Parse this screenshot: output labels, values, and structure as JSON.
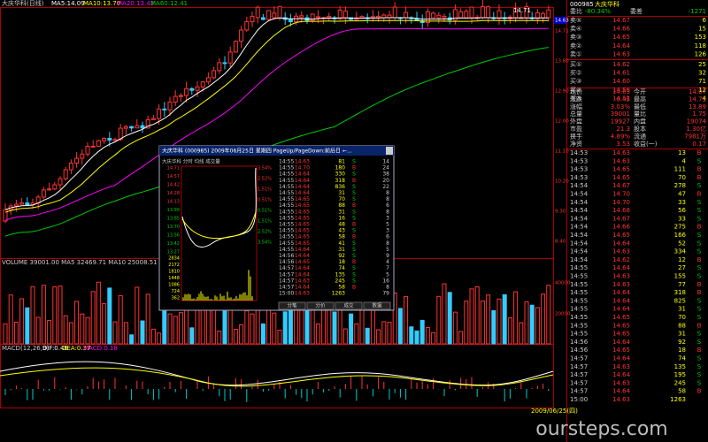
{
  "main": {
    "title": "大庆华科(日线)",
    "ma5": "MA5:14.09",
    "ma10": "MA10:13.70",
    "ma20": "MA20:13.42",
    "ma60": "MA60:12.41",
    "high_label": "14.71",
    "price_tag": "14.63",
    "axis": [
      "14.71",
      "13.80",
      "12.90",
      "12.00",
      "11.10",
      "10.20",
      "9.30",
      "8.40"
    ],
    "volume_label": "VOLUME 39001.00  MA5 32469.71  MA10 25008.51",
    "vol_axis": [
      "40000",
      "20000"
    ],
    "macd_label": "MACD(12,26,9)",
    "dif": "DIF:0.46",
    "dea": "DEA:0.37",
    "macd": "MACD:0.18",
    "date_label": "2009/06/25(四)",
    "watermark": "oursteps.com"
  },
  "popup": {
    "title": "大庆华科 (000985)  2009年06月25日 星期四 PageUp/PageDown:前后日 ←...",
    "chart_title": "大庆华科  分时  均线  成交量",
    "left_axis": [
      "14.71",
      "14.57",
      "14.42",
      "14.28",
      "14.13",
      "13.99",
      "13.85",
      "13.70",
      "13.56",
      "13.42",
      "13.27"
    ],
    "right_axis": [
      "3.54%",
      "2.52%",
      "1.51%",
      "0.51%",
      "0.51%",
      "1.51%",
      "2.52%",
      "3.54%"
    ],
    "vol_axis": [
      "2834",
      "2172",
      "1810",
      "1448",
      "1086",
      "724",
      "362"
    ],
    "trades": [
      [
        "14:55",
        "14.63",
        "81",
        "S",
        "14"
      ],
      [
        "14:55",
        "14.70",
        "180",
        "B",
        "24"
      ],
      [
        "14:55",
        "14.64",
        "330",
        "S",
        "38"
      ],
      [
        "14:55",
        "14.64",
        "318",
        "B",
        "20"
      ],
      [
        "14:55",
        "14.64",
        "836",
        "S",
        "22"
      ],
      [
        "14:55",
        "14.64",
        "31",
        "S",
        "8"
      ],
      [
        "14:55",
        "14.65",
        "70",
        "S",
        "8"
      ],
      [
        "14:55",
        "14.65",
        "88",
        "B",
        "6"
      ],
      [
        "14:55",
        "14.65",
        "31",
        "S",
        "8"
      ],
      [
        "14:55",
        "14.65",
        "16",
        "S",
        "3"
      ],
      [
        "14:55",
        "14.65",
        "48",
        "B",
        "5"
      ],
      [
        "14:55",
        "14.65",
        "43",
        "S",
        "3"
      ],
      [
        "14:55",
        "14.65",
        "58",
        "B",
        "6"
      ],
      [
        "14:55",
        "14.65",
        "41",
        "S",
        "8"
      ],
      [
        "14:55",
        "14.64",
        "31",
        "S",
        "5"
      ],
      [
        "14:56",
        "14.64",
        "92",
        "S",
        "9"
      ],
      [
        "14:56",
        "14.65",
        "18",
        "B",
        "4"
      ],
      [
        "14:57",
        "14.64",
        "74",
        "S",
        "7"
      ],
      [
        "14:57",
        "14.64",
        "135",
        "S",
        "5"
      ],
      [
        "14:57",
        "14.63",
        "245",
        "S",
        "16"
      ],
      [
        "14:57",
        "14.64",
        "58",
        "B",
        "8"
      ],
      [
        "15:00",
        "14.63",
        "1263",
        "",
        "79"
      ]
    ],
    "tabs": [
      "分笔",
      "分价",
      "成交",
      "数据"
    ]
  },
  "panel": {
    "code": "000985",
    "name": "大庆华科",
    "ratio": [
      "委比",
      "-80.34%",
      "委差",
      "-1271"
    ],
    "book": [
      [
        "卖⑤",
        "14.67",
        "6"
      ],
      [
        "卖④",
        "14.66",
        "15"
      ],
      [
        "卖③",
        "14.65",
        "153"
      ],
      [
        "卖②",
        "14.64",
        "118"
      ],
      [
        "卖①",
        "14.63",
        "126"
      ],
      [
        "买①",
        "14.62",
        "25"
      ],
      [
        "买②",
        "14.61",
        "32"
      ],
      [
        "买③",
        "14.60",
        "71"
      ],
      [
        "买④",
        "14.56",
        "12"
      ],
      [
        "买⑤",
        "14.52",
        "4"
      ]
    ],
    "stats": [
      [
        "现价",
        "14.63",
        "今开",
        "14.07"
      ],
      [
        "涨跌",
        "0.45",
        "最高",
        "14.71"
      ],
      [
        "涨幅",
        "3.03%",
        "最低",
        "13.89"
      ],
      [
        "总量",
        "39001",
        "量比",
        "1.75"
      ],
      [
        "外盘",
        "19927",
        "内盘",
        "19074"
      ],
      [
        "市盈",
        "21.3",
        "股本",
        "1.30亿"
      ],
      [
        "换手",
        "4.89%",
        "流通",
        "7981万"
      ],
      [
        "净资",
        "3.53",
        "收益(一)",
        "0.17"
      ]
    ],
    "trades": [
      [
        "14:53",
        "14.63",
        "13",
        "B"
      ],
      [
        "14:53",
        "14.63",
        "4",
        "S"
      ],
      [
        "14:53",
        "14.65",
        "111",
        "B"
      ],
      [
        "14:53",
        "14.65",
        "70",
        "B"
      ],
      [
        "14:54",
        "14.67",
        "278",
        "S"
      ],
      [
        "14:54",
        "14.70",
        "47",
        "B"
      ],
      [
        "14:54",
        "14.70",
        "33",
        "S"
      ],
      [
        "14:54",
        "14.68",
        "56",
        "S"
      ],
      [
        "14:54",
        "14.67",
        "33",
        "S"
      ],
      [
        "14:54",
        "14.66",
        "275",
        "B"
      ],
      [
        "14:54",
        "14.65",
        "166",
        "S"
      ],
      [
        "14:54",
        "14.64",
        "52",
        "S"
      ],
      [
        "14:54",
        "14.63",
        "334",
        "S"
      ],
      [
        "14:54",
        "14.62",
        "12",
        "B"
      ],
      [
        "14:55",
        "14.64",
        "27",
        "S"
      ],
      [
        "14:55",
        "14.63",
        "155",
        "S"
      ],
      [
        "14:55",
        "14.63",
        "77",
        "B"
      ],
      [
        "14:55",
        "14.64",
        "318",
        "B"
      ],
      [
        "14:55",
        "14.64",
        "825",
        "S"
      ],
      [
        "14:55",
        "14.64",
        "31",
        "S"
      ],
      [
        "14:55",
        "14.65",
        "70",
        "S"
      ],
      [
        "14:55",
        "14.65",
        "88",
        "B"
      ],
      [
        "14:55",
        "14.65",
        "31",
        "S"
      ],
      [
        "14:56",
        "14.64",
        "92",
        "S"
      ],
      [
        "14:56",
        "14.65",
        "18",
        "B"
      ],
      [
        "14:57",
        "14.64",
        "74",
        "S"
      ],
      [
        "14:57",
        "14.63",
        "135",
        "S"
      ],
      [
        "14:57",
        "14.64",
        "195",
        "S"
      ],
      [
        "14:57",
        "14.63",
        "245",
        "S"
      ],
      [
        "14:57",
        "14.64",
        "58",
        "B"
      ],
      [
        "15:00",
        "14.63",
        "1263",
        ""
      ]
    ]
  }
}
